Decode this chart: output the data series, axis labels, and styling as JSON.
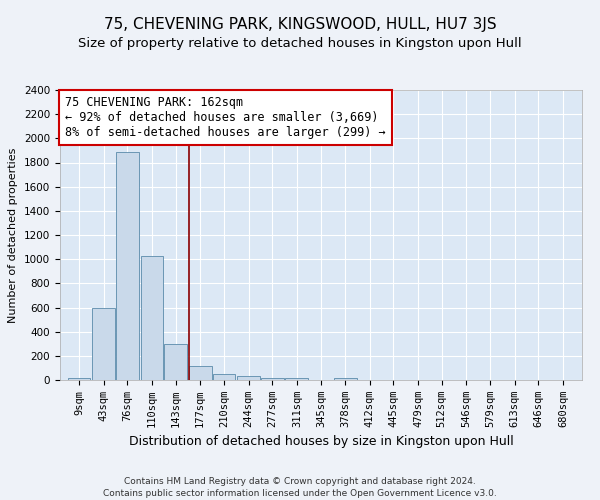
{
  "title": "75, CHEVENING PARK, KINGSWOOD, HULL, HU7 3JS",
  "subtitle": "Size of property relative to detached houses in Kingston upon Hull",
  "xlabel_bottom": "Distribution of detached houses by size in Kingston upon Hull",
  "ylabel": "Number of detached properties",
  "footnote1": "Contains HM Land Registry data © Crown copyright and database right 2024.",
  "footnote2": "Contains public sector information licensed under the Open Government Licence v3.0.",
  "annotation_line1": "75 CHEVENING PARK: 162sqm",
  "annotation_line2": "← 92% of detached houses are smaller (3,669)",
  "annotation_line3": "8% of semi-detached houses are larger (299) →",
  "bar_color": "#c9d9ea",
  "bar_edge_color": "#5a8aaa",
  "vline_color": "#8b0000",
  "vline_x": 162,
  "annotation_box_color": "white",
  "annotation_box_edge": "#cc0000",
  "categories": [
    9,
    43,
    76,
    110,
    143,
    177,
    210,
    244,
    277,
    311,
    345,
    378,
    412,
    445,
    479,
    512,
    546,
    579,
    613,
    646,
    680
  ],
  "values": [
    20,
    600,
    1890,
    1030,
    295,
    115,
    50,
    30,
    20,
    20,
    0,
    20,
    0,
    0,
    0,
    0,
    0,
    0,
    0,
    0,
    0
  ],
  "bin_width": 33,
  "ylim": [
    0,
    2400
  ],
  "yticks": [
    0,
    200,
    400,
    600,
    800,
    1000,
    1200,
    1400,
    1600,
    1800,
    2000,
    2200,
    2400
  ],
  "background_color": "#eef2f8",
  "plot_bg_color": "#dce8f5",
  "grid_color": "#ffffff",
  "title_fontsize": 11,
  "subtitle_fontsize": 9.5,
  "ylabel_fontsize": 8,
  "xlabel_fontsize": 9,
  "tick_fontsize": 7.5,
  "annotation_fontsize": 8.5,
  "footnote_fontsize": 6.5
}
